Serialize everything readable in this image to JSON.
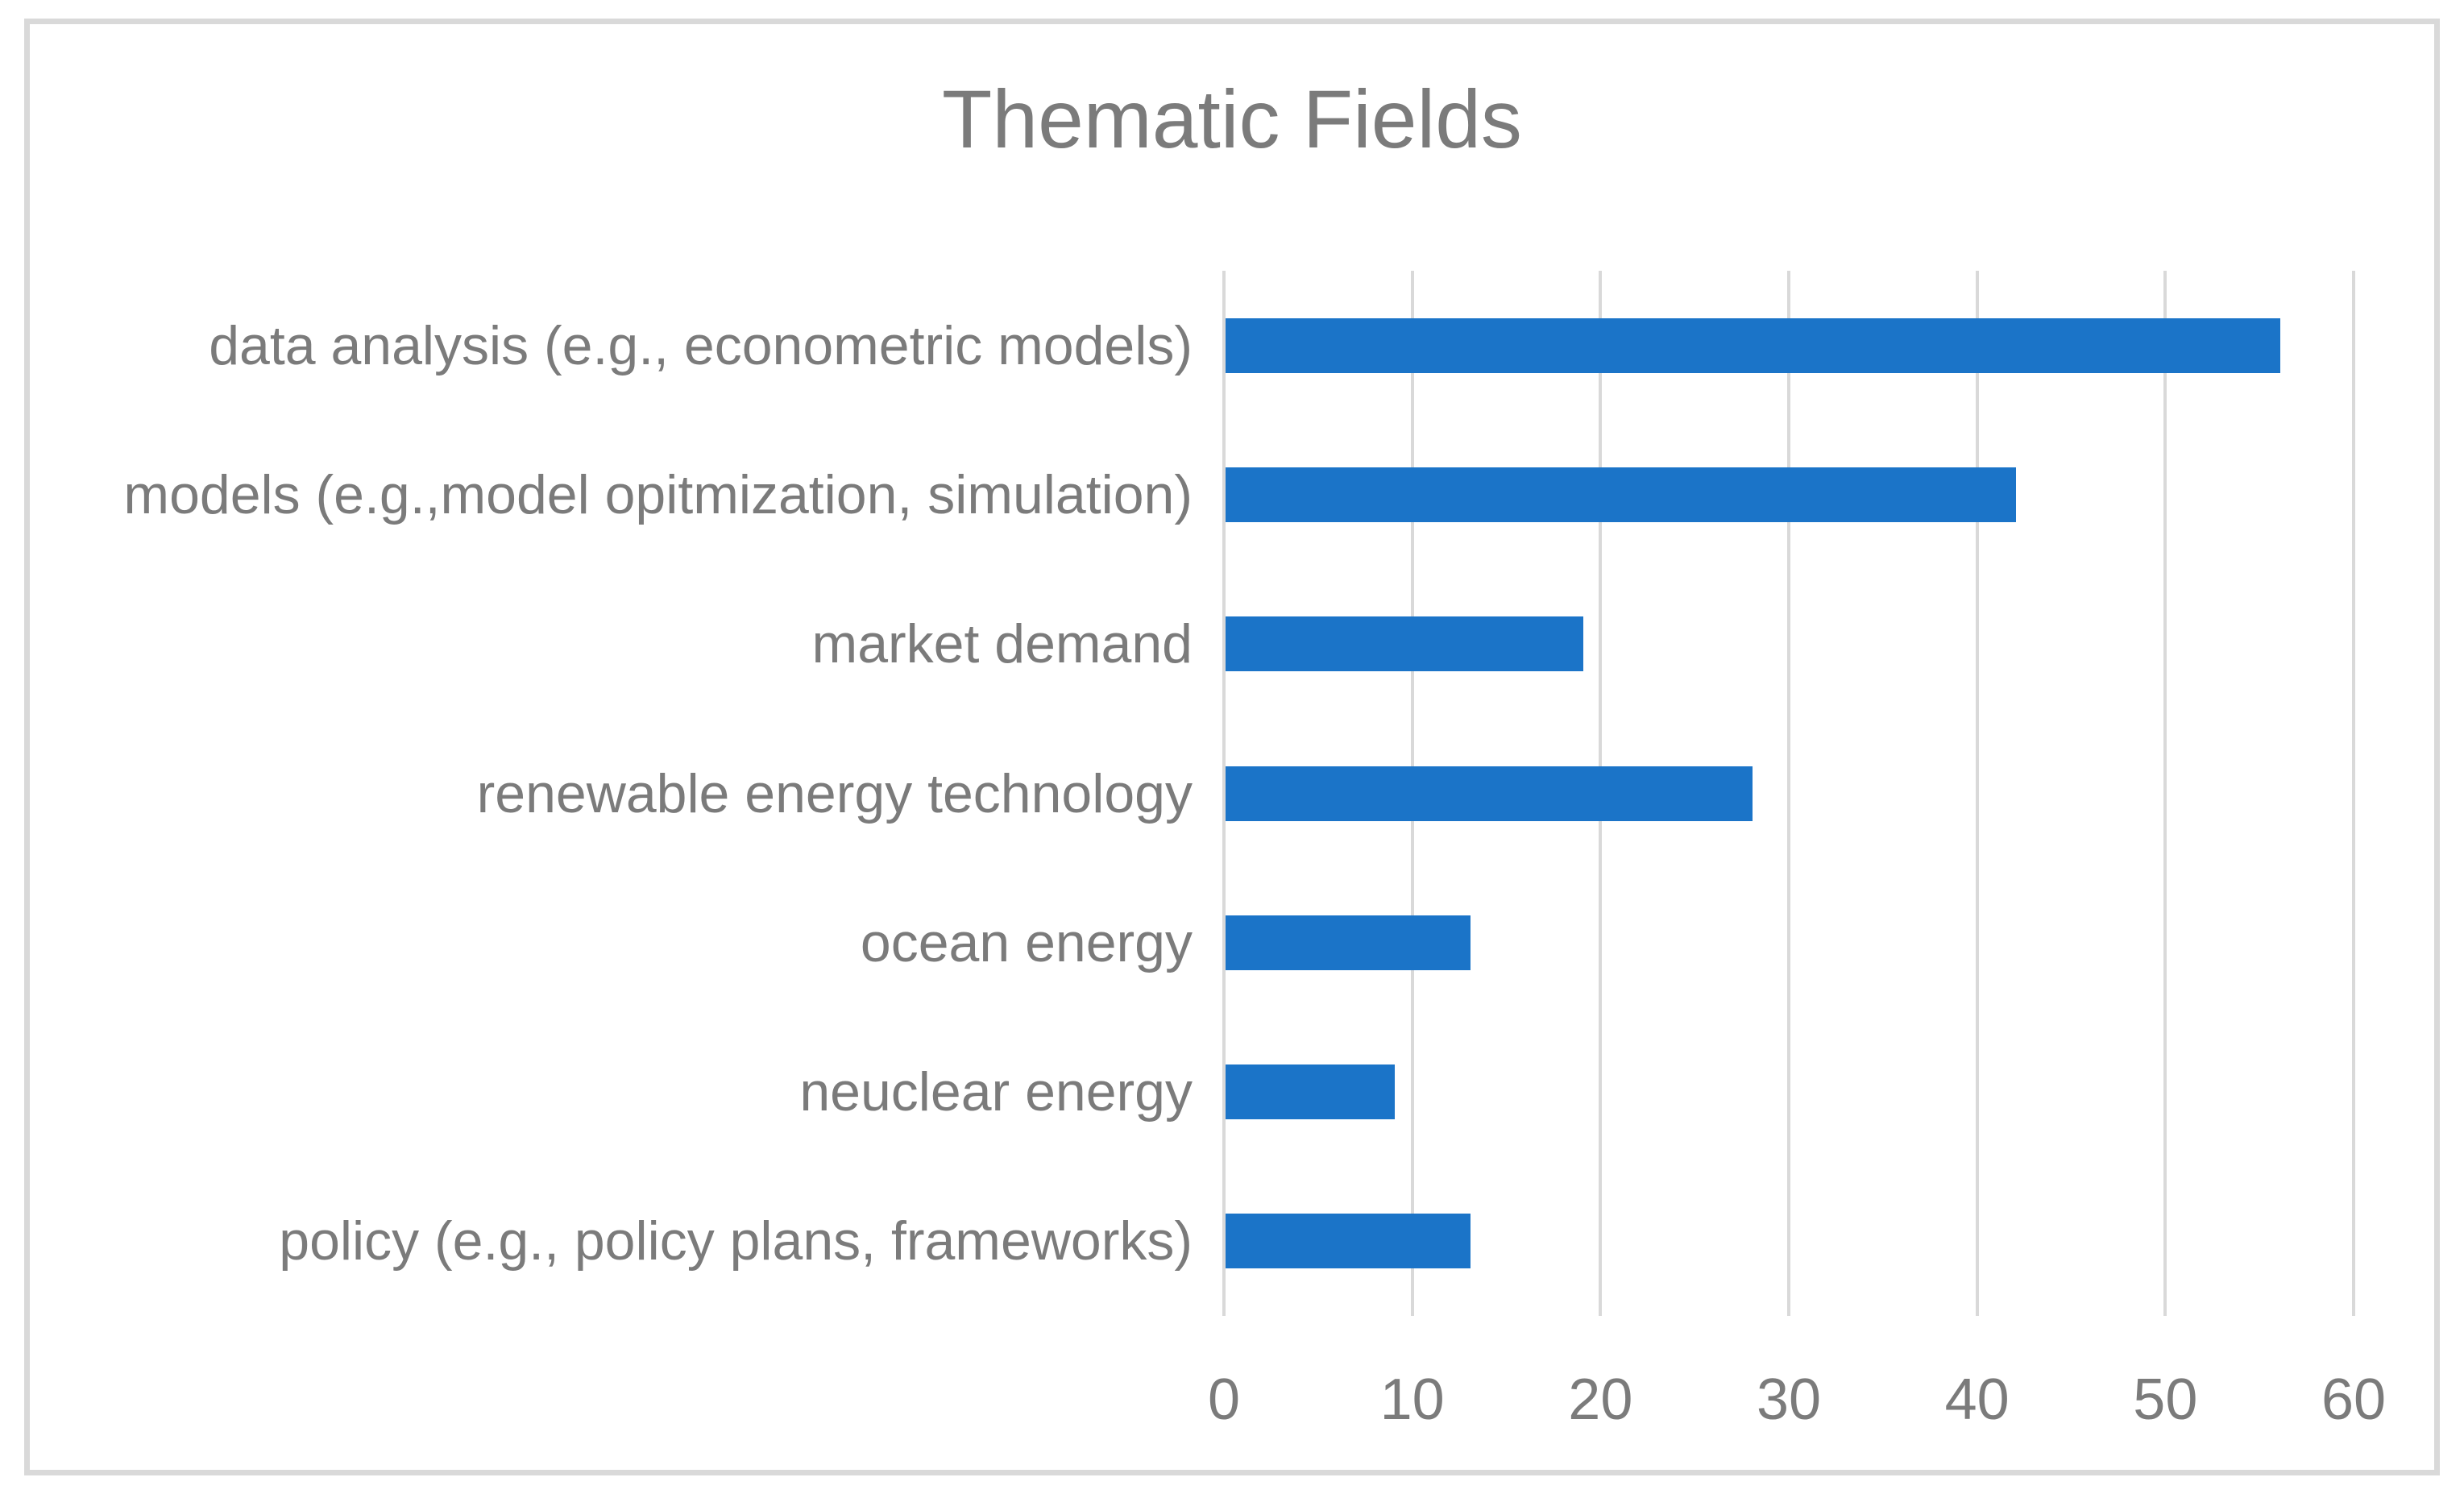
{
  "title": "Thematic Fields",
  "colors": {
    "bar": "#1b74c8",
    "gridline": "#d9d9d9",
    "frame_border": "#d9d9d9",
    "text": "#7b7b7b",
    "background": "#ffffff"
  },
  "chart_data": {
    "type": "bar",
    "orientation": "horizontal",
    "title": "Thematic Fields",
    "categories": [
      "data analysis (e.g., econometric models)",
      "models (e.g.,model opitmization, simulation)",
      "market demand",
      "renewable energy technology",
      "ocean energy",
      "neuclear energy",
      "policy (e.g., policy plans, frameworks)"
    ],
    "values": [
      56,
      42,
      19,
      28,
      13,
      9,
      13
    ],
    "xlabel": "",
    "ylabel": "",
    "xlim": [
      0,
      60
    ],
    "xticks": [
      0,
      10,
      20,
      30,
      40,
      50,
      60
    ],
    "grid": "vertical-major",
    "legend": "none",
    "bar_color": "#1b74c8"
  }
}
